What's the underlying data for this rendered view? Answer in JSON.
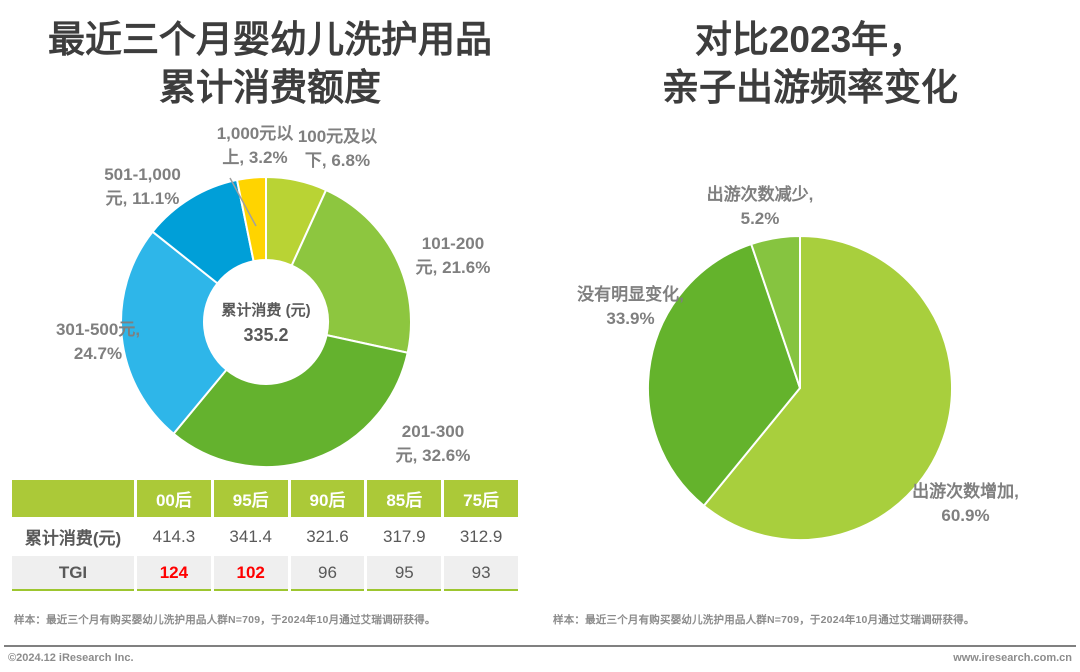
{
  "chart_data": [
    {
      "type": "pie",
      "variant": "donut",
      "title": "最近三个月婴幼儿洗护用品累计消费额度",
      "title_line1": "最近三个月婴幼儿洗护用品",
      "title_line2": "累计消费额度",
      "center_label": "累计消费 (元)",
      "center_value": "335.2",
      "legend_position": "outside-labels",
      "segments": [
        {
          "label": "100元及以下",
          "value": 6.8,
          "color": "#b9d334",
          "display_line1": "100元及以",
          "display_line2": "下, 6.8%"
        },
        {
          "label": "101-200元",
          "value": 21.6,
          "color": "#8dc63f",
          "display_line1": "101-200",
          "display_line2": "元, 21.6%"
        },
        {
          "label": "201-300元",
          "value": 32.6,
          "color": "#64b22e",
          "display_line1": "201-300",
          "display_line2": "元, 32.6%"
        },
        {
          "label": "301-500元",
          "value": 24.7,
          "color": "#2eb6e9",
          "display_line1": "301-500元,",
          "display_line2": "24.7%"
        },
        {
          "label": "501-1,000元",
          "value": 11.1,
          "color": "#009fd8",
          "display_line1": "501-1,000",
          "display_line2": "元, 11.1%"
        },
        {
          "label": "1,000元以上",
          "value": 3.2,
          "color": "#ffd400",
          "display_line1": "1,000元以",
          "display_line2": "上, 3.2%"
        }
      ]
    },
    {
      "type": "pie",
      "variant": "pie",
      "title": "对比2023年，亲子出游频率变化",
      "title_line1": "对比2023年，",
      "title_line2": "亲子出游频率变化",
      "legend_position": "outside-labels",
      "segments": [
        {
          "label": "出游次数增加",
          "value": 60.9,
          "color": "#a8cf3d",
          "display_line1": "出游次数增加,",
          "display_line2": "60.9%"
        },
        {
          "label": "没有明显变化",
          "value": 33.9,
          "color": "#64b32c",
          "display_line1": "没有明显变化,",
          "display_line2": "33.9%"
        },
        {
          "label": "出游次数减少",
          "value": 5.2,
          "color": "#86c440",
          "display_line1": "出游次数减少,",
          "display_line2": "5.2%"
        }
      ]
    }
  ],
  "table": {
    "header_bg": "#abc938",
    "highlight_color": "#ff0000",
    "headers": [
      "",
      "00后",
      "95后",
      "90后",
      "85后",
      "75后"
    ],
    "rows": [
      {
        "label": "累计消费(元)",
        "values": [
          "414.3",
          "341.4",
          "321.6",
          "317.9",
          "312.9"
        ]
      },
      {
        "label": "TGI",
        "values": [
          "124",
          "102",
          "96",
          "95",
          "93"
        ],
        "highlighted": [
          true,
          true,
          false,
          false,
          false
        ]
      }
    ]
  },
  "footnotes": {
    "left": "样本：最近三个月有购买婴幼儿洗护用品人群N=709，于2024年10月通过艾瑞调研获得。",
    "right": "样本：最近三个月有购买婴幼儿洗护用品人群N=709，于2024年10月通过艾瑞调研获得。"
  },
  "footer": {
    "copyright": "©2024.12 iResearch Inc.",
    "website": "www.iresearch.com.cn"
  }
}
